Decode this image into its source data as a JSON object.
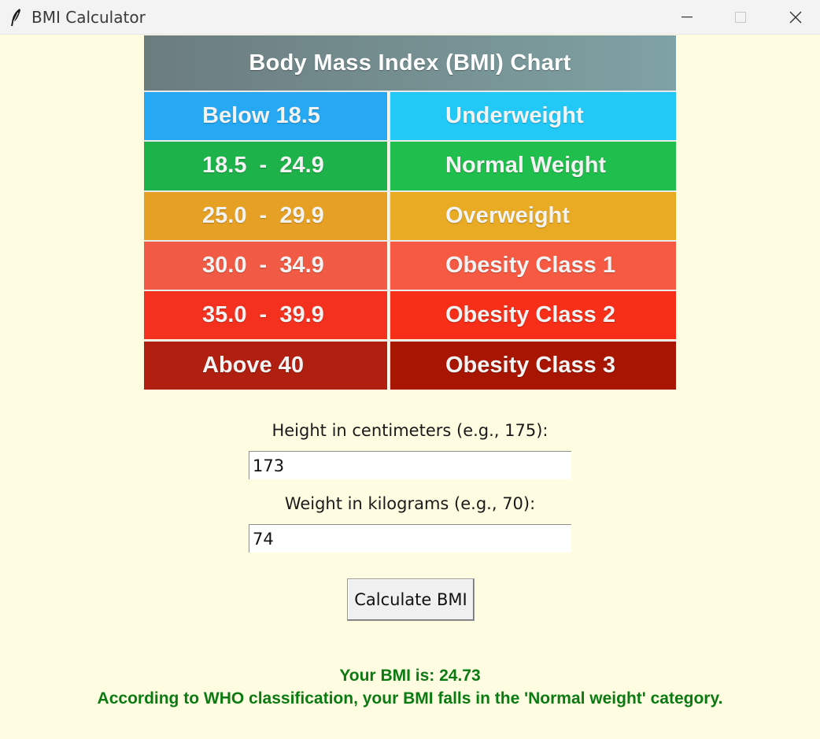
{
  "window": {
    "title": "BMI Calculator",
    "icon": "feather-icon",
    "controls": [
      "minimize-icon",
      "maximize-icon",
      "close-icon"
    ]
  },
  "chart": {
    "title": "Body Mass Index (BMI) Chart",
    "rows": [
      {
        "range": "Below 18.5",
        "category": "Underweight",
        "color_left": "#26A9F2",
        "color_right": "#22C8F6"
      },
      {
        "range": "18.5  -  24.9",
        "category": "Normal Weight",
        "color_left": "#1DB24A",
        "color_right": "#20BE4C"
      },
      {
        "range": "25.0  -  29.9",
        "category": "Overweight",
        "color_left": "#E6A124",
        "color_right": "#E9AA24"
      },
      {
        "range": "30.0  -  34.9",
        "category": "Obesity Class 1",
        "color_left": "#F15A44",
        "color_right": "#F75A42"
      },
      {
        "range": "35.0  -  39.9",
        "category": "Obesity Class 2",
        "color_left": "#F4311F",
        "color_right": "#F72E18"
      },
      {
        "range": "Above 40",
        "category": "Obesity Class 3",
        "color_left": "#B01F10",
        "color_right": "#A81500"
      }
    ]
  },
  "form": {
    "height_label": "Height in centimeters (e.g., 175):",
    "height_value": "173",
    "weight_label": "Weight in kilograms (e.g., 70):",
    "weight_value": "74",
    "calculate_label": "Calculate BMI"
  },
  "result": {
    "bmi_line": "Your BMI is: 24.73",
    "classification_line": "According to WHO classification, your BMI falls in the 'Normal weight' category."
  },
  "colors": {
    "background": "#FFFDE1",
    "result_text": "#0B7A12"
  }
}
